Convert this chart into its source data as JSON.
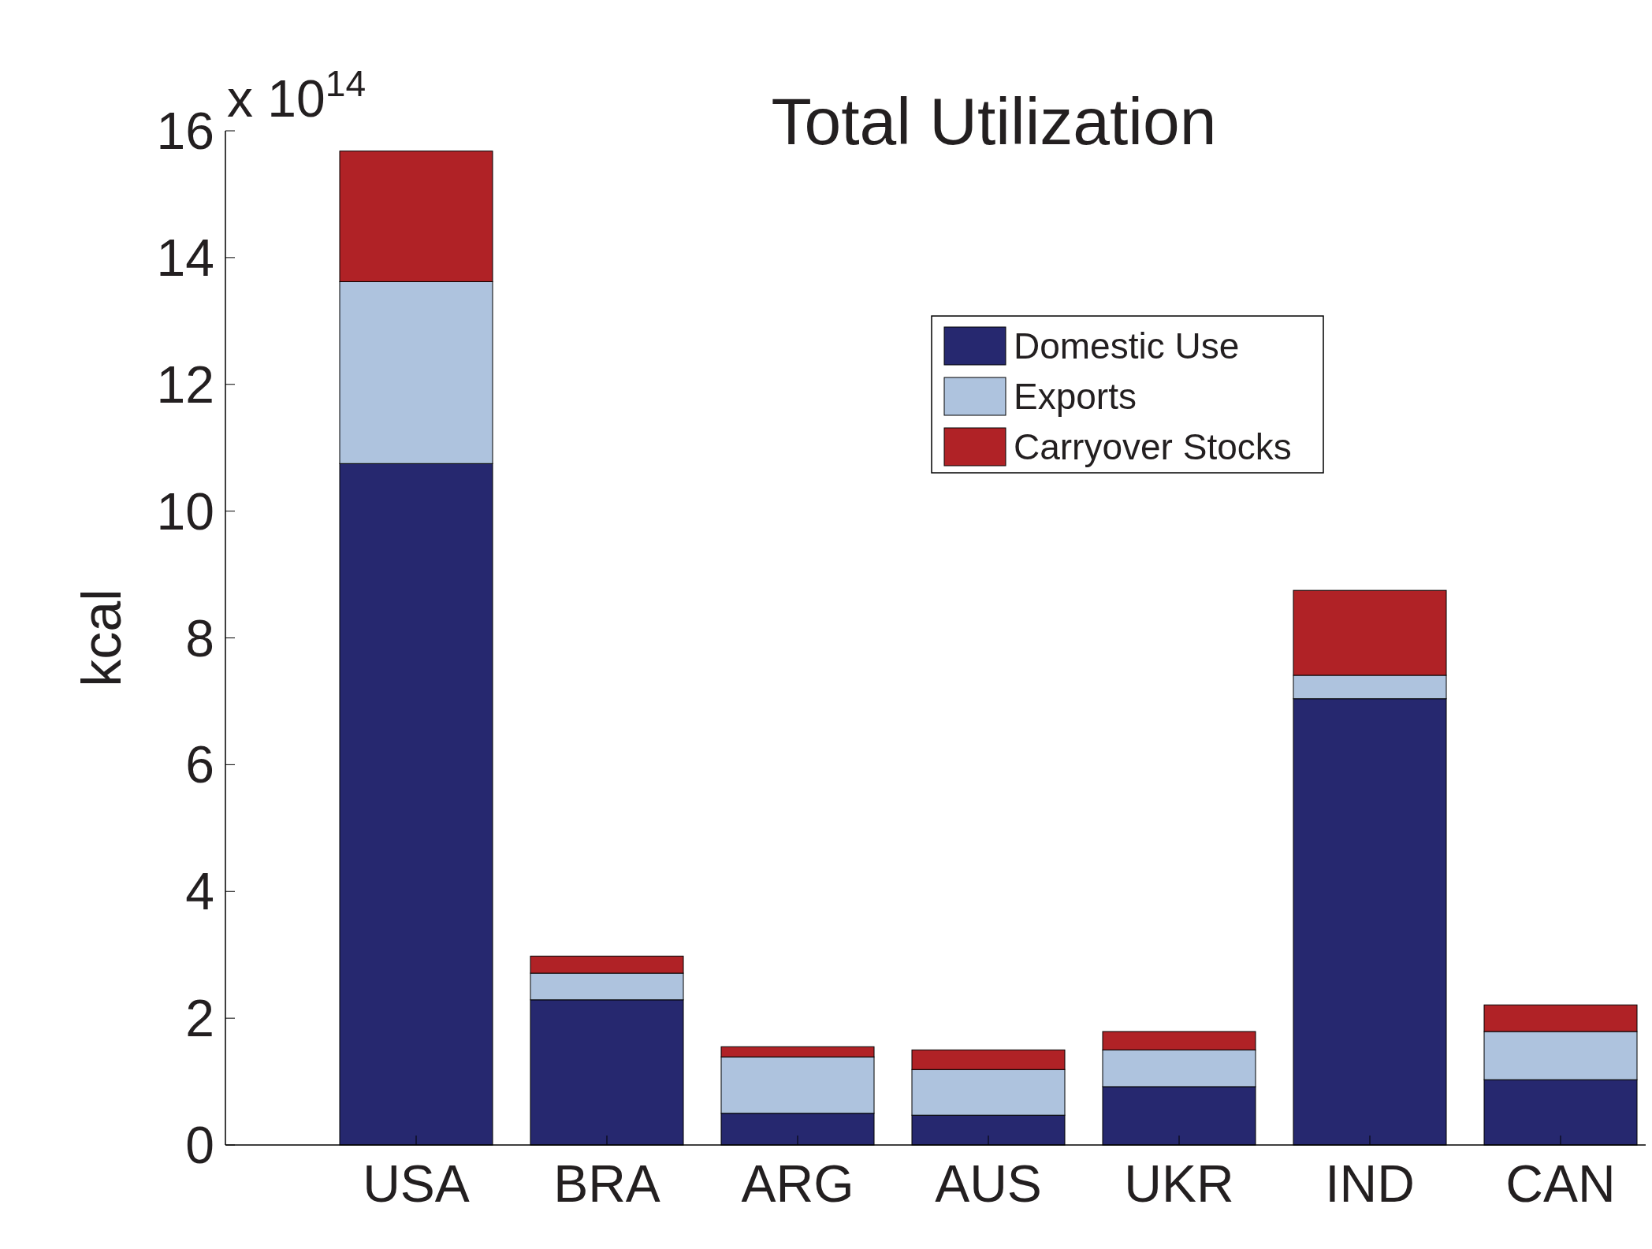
{
  "chart_data": {
    "type": "bar",
    "title": "Total Utilization",
    "ylabel": "kcal",
    "categories": [
      "USA",
      "BRA",
      "ARG",
      "AUS",
      "UKR",
      "IND",
      "CAN"
    ],
    "stacked": true,
    "series": [
      {
        "name": "Domestic Use",
        "color": "#26286f",
        "values": [
          10.75,
          2.29,
          0.5,
          0.47,
          0.92,
          7.04,
          1.03
        ]
      },
      {
        "name": "Exports",
        "color": "#aec3de",
        "values": [
          2.87,
          0.42,
          0.89,
          0.72,
          0.58,
          0.37,
          0.76
        ]
      },
      {
        "name": "Carryover Stocks",
        "color": "#b02226",
        "values": [
          2.06,
          0.27,
          0.16,
          0.31,
          0.29,
          1.34,
          0.42
        ]
      }
    ],
    "ylim": [
      0,
      16
    ],
    "yticks": [
      0,
      2,
      4,
      6,
      8,
      10,
      12,
      14,
      16
    ],
    "grid": false,
    "legend": "top right",
    "annotations": [
      "x 10$^{14}$"
    ]
  }
}
